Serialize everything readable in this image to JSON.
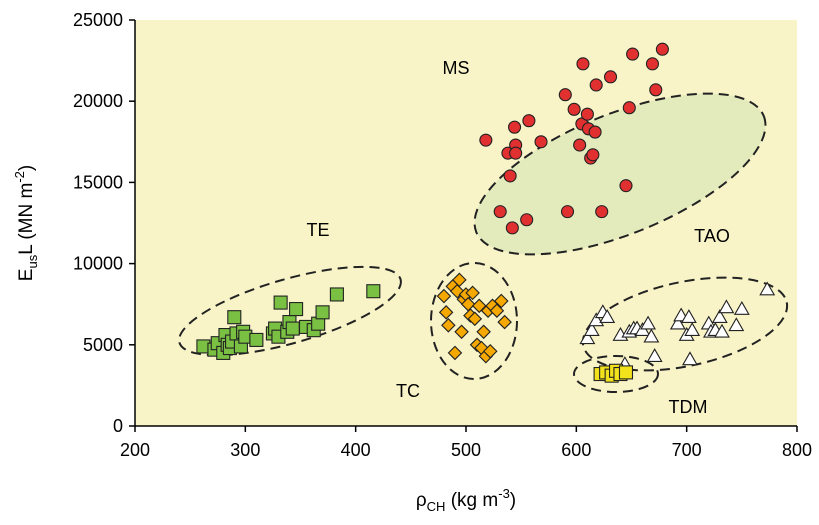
{
  "chart_data": {
    "type": "scatter",
    "xlabel": {
      "main": "ρ",
      "sub": "CH",
      "unit_pre": "(kg m",
      "unit_sup": "-3",
      "unit_post": ")"
    },
    "ylabel": {
      "pre": "E",
      "sub": "us",
      "mid": "L  (MN m",
      "sup": "-2",
      "post": ")"
    },
    "xlim": [
      200,
      800
    ],
    "ylim": [
      0,
      25000
    ],
    "xticks": [
      "200",
      "300",
      "400",
      "500",
      "600",
      "700",
      "800"
    ],
    "yticks": [
      "0",
      "5000",
      "10000",
      "15000",
      "20000",
      "25000"
    ],
    "plot_background": "#f9f4c8",
    "grid": false,
    "groups": [
      {
        "label": "MS"
      },
      {
        "label": "TE"
      },
      {
        "label": "TC"
      },
      {
        "label": "TAO"
      },
      {
        "label": "TDM"
      }
    ],
    "series": [
      {
        "marker": "circle",
        "color": "#e03030",
        "points": [
          [
            518,
            17600
          ],
          [
            531,
            13200
          ],
          [
            538,
            16800
          ],
          [
            540,
            15400
          ],
          [
            542,
            12200
          ],
          [
            544,
            18400
          ],
          [
            545,
            17300
          ],
          [
            545,
            16800
          ],
          [
            555,
            12700
          ],
          [
            557,
            18800
          ],
          [
            568,
            17500
          ],
          [
            590,
            20400
          ],
          [
            592,
            13200
          ],
          [
            598,
            19500
          ],
          [
            603,
            17300
          ],
          [
            605,
            18600
          ],
          [
            606,
            22300
          ],
          [
            610,
            19200
          ],
          [
            611,
            18300
          ],
          [
            613,
            16500
          ],
          [
            615,
            16700
          ],
          [
            617,
            18100
          ],
          [
            618,
            21000
          ],
          [
            623,
            13200
          ],
          [
            631,
            21500
          ],
          [
            645,
            14800
          ],
          [
            648,
            19600
          ],
          [
            651,
            22900
          ],
          [
            669,
            22300
          ],
          [
            672,
            20700
          ],
          [
            678,
            23200
          ]
        ]
      },
      {
        "marker": "square",
        "color": "#7ac143",
        "points": [
          [
            262,
            4900
          ],
          [
            272,
            4700
          ],
          [
            275,
            5100
          ],
          [
            280,
            4500
          ],
          [
            282,
            5600
          ],
          [
            284,
            5000
          ],
          [
            286,
            4800
          ],
          [
            288,
            5200
          ],
          [
            290,
            6700
          ],
          [
            292,
            5700
          ],
          [
            296,
            4900
          ],
          [
            298,
            5800
          ],
          [
            300,
            5500
          ],
          [
            310,
            5300
          ],
          [
            325,
            5700
          ],
          [
            327,
            6000
          ],
          [
            330,
            5500
          ],
          [
            332,
            7600
          ],
          [
            338,
            5800
          ],
          [
            340,
            6400
          ],
          [
            343,
            6000
          ],
          [
            346,
            7200
          ],
          [
            355,
            6100
          ],
          [
            362,
            5900
          ],
          [
            366,
            6300
          ],
          [
            370,
            7000
          ],
          [
            383,
            8100
          ],
          [
            416,
            8300
          ]
        ]
      },
      {
        "marker": "diamond",
        "color": "#f5a800",
        "points": [
          [
            480,
            8000
          ],
          [
            482,
            7000
          ],
          [
            484,
            6200
          ],
          [
            488,
            8600
          ],
          [
            490,
            4500
          ],
          [
            492,
            8300
          ],
          [
            494,
            9000
          ],
          [
            496,
            5800
          ],
          [
            498,
            7800
          ],
          [
            500,
            8100
          ],
          [
            502,
            7500
          ],
          [
            504,
            6800
          ],
          [
            506,
            8200
          ],
          [
            508,
            6600
          ],
          [
            510,
            5000
          ],
          [
            512,
            7400
          ],
          [
            514,
            4800
          ],
          [
            516,
            5800
          ],
          [
            518,
            4300
          ],
          [
            520,
            7100
          ],
          [
            522,
            4600
          ],
          [
            524,
            7400
          ],
          [
            528,
            7100
          ],
          [
            532,
            7700
          ],
          [
            535,
            6400
          ]
        ]
      },
      {
        "marker": "triangle",
        "color": "#ffffff",
        "points": [
          [
            610,
            5400
          ],
          [
            614,
            5900
          ],
          [
            618,
            6500
          ],
          [
            624,
            7000
          ],
          [
            628,
            6700
          ],
          [
            640,
            5600
          ],
          [
            644,
            3800
          ],
          [
            648,
            5800
          ],
          [
            652,
            6000
          ],
          [
            655,
            6000
          ],
          [
            660,
            5900
          ],
          [
            665,
            6300
          ],
          [
            668,
            5500
          ],
          [
            671,
            4300
          ],
          [
            692,
            6300
          ],
          [
            695,
            6800
          ],
          [
            700,
            5600
          ],
          [
            702,
            6700
          ],
          [
            703,
            4100
          ],
          [
            705,
            5900
          ],
          [
            720,
            6300
          ],
          [
            722,
            5800
          ],
          [
            726,
            5900
          ],
          [
            730,
            6700
          ],
          [
            732,
            5800
          ],
          [
            736,
            7300
          ],
          [
            745,
            6200
          ],
          [
            750,
            7200
          ],
          [
            773,
            8400
          ]
        ]
      },
      {
        "marker": "square",
        "color": "#f2e21c",
        "points": [
          [
            622,
            3200
          ],
          [
            627,
            3300
          ],
          [
            632,
            3100
          ],
          [
            636,
            3400
          ],
          [
            640,
            3200
          ],
          [
            645,
            3300
          ]
        ]
      }
    ]
  }
}
